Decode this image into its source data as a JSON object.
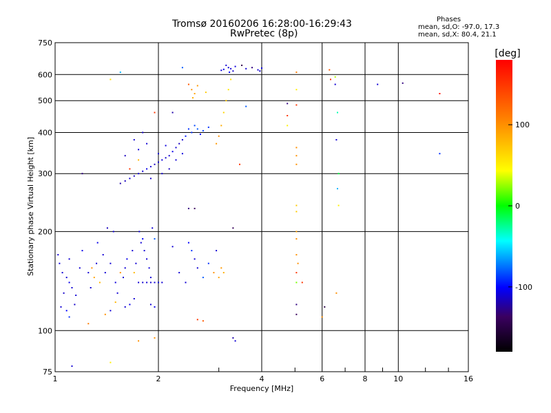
{
  "header": {
    "title": "Tromsø 20160206 16:28:00-16:29:43",
    "subtitle": "RwPretec (8p)",
    "stats_title": "Phases",
    "stats_o": "mean, sd,O: -97.0, 17.3",
    "stats_x": "mean, sd,X:  80.4, 21.1"
  },
  "chart_data": {
    "type": "scatter",
    "title": "Tromsø 20160206 16:28:00-16:29:43",
    "subtitle": "RwPretec (8p)",
    "xlabel": "Frequency [MHz]",
    "ylabel": "Stationary phase Virtual Height [km]",
    "x_scale": "log",
    "y_scale": "log",
    "xlim": [
      1,
      16
    ],
    "ylim": [
      75,
      750
    ],
    "x_ticks": [
      1,
      2,
      4,
      6,
      8,
      10,
      16
    ],
    "x_tick_labels": [
      "1",
      "2",
      "4",
      "6",
      "8",
      "10",
      "16"
    ],
    "y_ticks": [
      75,
      100,
      200,
      300,
      400,
      500,
      600,
      750
    ],
    "y_tick_labels": [
      "75",
      "100",
      "200",
      "300",
      "400",
      "500",
      "600",
      "750"
    ],
    "grid": true,
    "colorbar": {
      "label": "[deg]",
      "range": [
        -180,
        180
      ],
      "ticks": [
        100,
        0,
        -100
      ],
      "tick_labels": [
        "100",
        "0",
        "-100"
      ]
    },
    "points": [
      {
        "x": 3.15,
        "y": 640,
        "phase": -110
      },
      {
        "x": 3.2,
        "y": 630,
        "phase": -110
      },
      {
        "x": 3.25,
        "y": 625,
        "phase": -110
      },
      {
        "x": 3.1,
        "y": 622,
        "phase": -105
      },
      {
        "x": 3.3,
        "y": 615,
        "phase": -112
      },
      {
        "x": 3.05,
        "y": 618,
        "phase": -108
      },
      {
        "x": 3.22,
        "y": 610,
        "phase": -100
      },
      {
        "x": 3.35,
        "y": 635,
        "phase": -108
      },
      {
        "x": 3.6,
        "y": 625,
        "phase": -110
      },
      {
        "x": 3.9,
        "y": 620,
        "phase": -110
      },
      {
        "x": 4.0,
        "y": 628,
        "phase": -105
      },
      {
        "x": 3.95,
        "y": 615,
        "phase": -112
      },
      {
        "x": 2.35,
        "y": 630,
        "phase": -80
      },
      {
        "x": 3.5,
        "y": 640,
        "phase": -150
      },
      {
        "x": 3.75,
        "y": 630,
        "phase": -130
      },
      {
        "x": 1.2,
        "y": 300,
        "phase": -130
      },
      {
        "x": 1.12,
        "y": 78,
        "phase": -110
      },
      {
        "x": 1.55,
        "y": 610,
        "phase": -60
      },
      {
        "x": 2.45,
        "y": 560,
        "phase": 130
      },
      {
        "x": 2.5,
        "y": 540,
        "phase": 100
      },
      {
        "x": 2.55,
        "y": 525,
        "phase": 90
      },
      {
        "x": 2.6,
        "y": 555,
        "phase": 95
      },
      {
        "x": 2.52,
        "y": 510,
        "phase": 85
      },
      {
        "x": 2.75,
        "y": 530,
        "phase": 70
      },
      {
        "x": 3.25,
        "y": 580,
        "phase": 60
      },
      {
        "x": 3.2,
        "y": 540,
        "phase": 55
      },
      {
        "x": 3.15,
        "y": 500,
        "phase": 70
      },
      {
        "x": 3.1,
        "y": 460,
        "phase": 65
      },
      {
        "x": 3.05,
        "y": 420,
        "phase": 85
      },
      {
        "x": 3.0,
        "y": 390,
        "phase": 100
      },
      {
        "x": 2.95,
        "y": 370,
        "phase": 95
      },
      {
        "x": 3.6,
        "y": 480,
        "phase": -80
      },
      {
        "x": 3.45,
        "y": 320,
        "phase": 150
      },
      {
        "x": 2.2,
        "y": 460,
        "phase": -120
      },
      {
        "x": 1.95,
        "y": 460,
        "phase": 150
      },
      {
        "x": 1.55,
        "y": 280,
        "phase": -120
      },
      {
        "x": 1.6,
        "y": 285,
        "phase": -115
      },
      {
        "x": 1.65,
        "y": 290,
        "phase": -110
      },
      {
        "x": 1.7,
        "y": 295,
        "phase": -112
      },
      {
        "x": 1.75,
        "y": 300,
        "phase": -108
      },
      {
        "x": 1.8,
        "y": 305,
        "phase": -110
      },
      {
        "x": 1.85,
        "y": 310,
        "phase": -105
      },
      {
        "x": 1.9,
        "y": 315,
        "phase": -110
      },
      {
        "x": 1.95,
        "y": 320,
        "phase": -115
      },
      {
        "x": 2.0,
        "y": 325,
        "phase": -110
      },
      {
        "x": 2.05,
        "y": 330,
        "phase": -108
      },
      {
        "x": 2.1,
        "y": 335,
        "phase": -112
      },
      {
        "x": 2.15,
        "y": 340,
        "phase": -110
      },
      {
        "x": 2.2,
        "y": 350,
        "phase": -105
      },
      {
        "x": 2.25,
        "y": 360,
        "phase": -110
      },
      {
        "x": 2.3,
        "y": 370,
        "phase": -115
      },
      {
        "x": 2.35,
        "y": 380,
        "phase": -110
      },
      {
        "x": 2.4,
        "y": 390,
        "phase": -95
      },
      {
        "x": 2.5,
        "y": 400,
        "phase": -90
      },
      {
        "x": 2.6,
        "y": 410,
        "phase": -80
      },
      {
        "x": 2.7,
        "y": 405,
        "phase": -85
      },
      {
        "x": 2.8,
        "y": 415,
        "phase": -90
      },
      {
        "x": 2.65,
        "y": 395,
        "phase": -100
      },
      {
        "x": 2.55,
        "y": 420,
        "phase": -85
      },
      {
        "x": 2.45,
        "y": 410,
        "phase": -90
      },
      {
        "x": 1.7,
        "y": 380,
        "phase": -110
      },
      {
        "x": 1.8,
        "y": 400,
        "phase": -112
      },
      {
        "x": 1.85,
        "y": 370,
        "phase": -110
      },
      {
        "x": 1.6,
        "y": 340,
        "phase": -115
      },
      {
        "x": 1.75,
        "y": 355,
        "phase": -110
      },
      {
        "x": 2.0,
        "y": 345,
        "phase": -110
      },
      {
        "x": 2.1,
        "y": 365,
        "phase": -108
      },
      {
        "x": 1.9,
        "y": 290,
        "phase": -112
      },
      {
        "x": 2.05,
        "y": 300,
        "phase": -110
      },
      {
        "x": 2.15,
        "y": 310,
        "phase": -115
      },
      {
        "x": 2.25,
        "y": 330,
        "phase": -110
      },
      {
        "x": 2.35,
        "y": 345,
        "phase": -108
      },
      {
        "x": 1.65,
        "y": 310,
        "phase": 150
      },
      {
        "x": 1.75,
        "y": 330,
        "phase": 80
      },
      {
        "x": 2.55,
        "y": 235,
        "phase": -140
      },
      {
        "x": 2.45,
        "y": 235,
        "phase": -130
      },
      {
        "x": 3.3,
        "y": 205,
        "phase": -140
      },
      {
        "x": 1.05,
        "y": 150,
        "phase": -110
      },
      {
        "x": 1.08,
        "y": 145,
        "phase": -110
      },
      {
        "x": 1.1,
        "y": 140,
        "phase": -105
      },
      {
        "x": 1.12,
        "y": 135,
        "phase": -110
      },
      {
        "x": 1.06,
        "y": 130,
        "phase": -112
      },
      {
        "x": 1.15,
        "y": 128,
        "phase": -110
      },
      {
        "x": 1.03,
        "y": 160,
        "phase": -108
      },
      {
        "x": 1.18,
        "y": 155,
        "phase": -110
      },
      {
        "x": 1.02,
        "y": 170,
        "phase": -110
      },
      {
        "x": 1.2,
        "y": 175,
        "phase": -105
      },
      {
        "x": 1.1,
        "y": 165,
        "phase": -110
      },
      {
        "x": 1.14,
        "y": 120,
        "phase": -112
      },
      {
        "x": 1.04,
        "y": 118,
        "phase": -110
      },
      {
        "x": 1.08,
        "y": 115,
        "phase": -100
      },
      {
        "x": 1.1,
        "y": 110,
        "phase": -90
      },
      {
        "x": 1.25,
        "y": 150,
        "phase": -110
      },
      {
        "x": 1.3,
        "y": 145,
        "phase": 90
      },
      {
        "x": 1.28,
        "y": 155,
        "phase": 100
      },
      {
        "x": 1.32,
        "y": 160,
        "phase": -110
      },
      {
        "x": 1.35,
        "y": 140,
        "phase": 80
      },
      {
        "x": 1.38,
        "y": 170,
        "phase": -110
      },
      {
        "x": 1.27,
        "y": 135,
        "phase": -110
      },
      {
        "x": 1.33,
        "y": 185,
        "phase": -105
      },
      {
        "x": 1.4,
        "y": 150,
        "phase": -110
      },
      {
        "x": 1.45,
        "y": 160,
        "phase": -110
      },
      {
        "x": 1.5,
        "y": 140,
        "phase": -108
      },
      {
        "x": 1.48,
        "y": 200,
        "phase": -110
      },
      {
        "x": 1.42,
        "y": 205,
        "phase": -115
      },
      {
        "x": 1.52,
        "y": 130,
        "phase": -110
      },
      {
        "x": 1.55,
        "y": 150,
        "phase": 100
      },
      {
        "x": 1.6,
        "y": 155,
        "phase": -110
      },
      {
        "x": 1.62,
        "y": 165,
        "phase": -105
      },
      {
        "x": 1.58,
        "y": 145,
        "phase": -110
      },
      {
        "x": 1.68,
        "y": 175,
        "phase": -110
      },
      {
        "x": 1.7,
        "y": 150,
        "phase": 80
      },
      {
        "x": 1.72,
        "y": 160,
        "phase": -110
      },
      {
        "x": 1.78,
        "y": 185,
        "phase": -110
      },
      {
        "x": 1.8,
        "y": 190,
        "phase": -100
      },
      {
        "x": 1.82,
        "y": 175,
        "phase": -110
      },
      {
        "x": 1.85,
        "y": 165,
        "phase": -110
      },
      {
        "x": 1.88,
        "y": 155,
        "phase": -108
      },
      {
        "x": 1.9,
        "y": 145,
        "phase": -110
      },
      {
        "x": 1.76,
        "y": 200,
        "phase": -110
      },
      {
        "x": 1.92,
        "y": 205,
        "phase": -110
      },
      {
        "x": 1.95,
        "y": 190,
        "phase": -80
      },
      {
        "x": 1.8,
        "y": 140,
        "phase": -110
      },
      {
        "x": 1.85,
        "y": 140,
        "phase": -110
      },
      {
        "x": 1.9,
        "y": 140,
        "phase": -112
      },
      {
        "x": 1.95,
        "y": 140,
        "phase": -110
      },
      {
        "x": 2.0,
        "y": 140,
        "phase": -108
      },
      {
        "x": 2.05,
        "y": 140,
        "phase": -110
      },
      {
        "x": 1.75,
        "y": 140,
        "phase": -110
      },
      {
        "x": 1.7,
        "y": 125,
        "phase": -110
      },
      {
        "x": 1.65,
        "y": 120,
        "phase": -105
      },
      {
        "x": 1.6,
        "y": 118,
        "phase": -110
      },
      {
        "x": 1.5,
        "y": 122,
        "phase": 80
      },
      {
        "x": 1.45,
        "y": 115,
        "phase": -110
      },
      {
        "x": 1.4,
        "y": 112,
        "phase": 100
      },
      {
        "x": 1.9,
        "y": 120,
        "phase": -110
      },
      {
        "x": 1.95,
        "y": 118,
        "phase": -105
      },
      {
        "x": 2.45,
        "y": 185,
        "phase": -100
      },
      {
        "x": 2.5,
        "y": 175,
        "phase": -90
      },
      {
        "x": 2.55,
        "y": 165,
        "phase": -110
      },
      {
        "x": 2.6,
        "y": 155,
        "phase": -110
      },
      {
        "x": 2.3,
        "y": 150,
        "phase": -110
      },
      {
        "x": 2.7,
        "y": 145,
        "phase": -80
      },
      {
        "x": 2.8,
        "y": 160,
        "phase": -90
      },
      {
        "x": 2.9,
        "y": 150,
        "phase": 100
      },
      {
        "x": 3.0,
        "y": 145,
        "phase": 90
      },
      {
        "x": 3.05,
        "y": 155,
        "phase": 95
      },
      {
        "x": 3.1,
        "y": 150,
        "phase": 85
      },
      {
        "x": 2.95,
        "y": 175,
        "phase": -110
      },
      {
        "x": 2.2,
        "y": 180,
        "phase": -110
      },
      {
        "x": 2.4,
        "y": 140,
        "phase": -110
      },
      {
        "x": 2.6,
        "y": 108,
        "phase": 150
      },
      {
        "x": 2.7,
        "y": 107,
        "phase": 130
      },
      {
        "x": 3.3,
        "y": 95,
        "phase": -120
      },
      {
        "x": 3.35,
        "y": 93,
        "phase": -110
      },
      {
        "x": 1.75,
        "y": 93,
        "phase": 100
      },
      {
        "x": 1.95,
        "y": 95,
        "phase": 100
      },
      {
        "x": 1.25,
        "y": 105,
        "phase": 110
      },
      {
        "x": 1.45,
        "y": 80,
        "phase": 50
      },
      {
        "x": 1.45,
        "y": 580,
        "phase": 60
      },
      {
        "x": 5.05,
        "y": 610,
        "phase": 110
      },
      {
        "x": 5.05,
        "y": 540,
        "phase": 50
      },
      {
        "x": 5.05,
        "y": 485,
        "phase": 150
      },
      {
        "x": 4.75,
        "y": 490,
        "phase": -130
      },
      {
        "x": 4.75,
        "y": 450,
        "phase": 150
      },
      {
        "x": 4.75,
        "y": 420,
        "phase": 50
      },
      {
        "x": 5.05,
        "y": 360,
        "phase": 100
      },
      {
        "x": 5.05,
        "y": 340,
        "phase": 100
      },
      {
        "x": 5.05,
        "y": 320,
        "phase": 100
      },
      {
        "x": 5.05,
        "y": 240,
        "phase": 70
      },
      {
        "x": 5.05,
        "y": 230,
        "phase": 70
      },
      {
        "x": 5.05,
        "y": 200,
        "phase": 90
      },
      {
        "x": 5.05,
        "y": 190,
        "phase": 100
      },
      {
        "x": 5.05,
        "y": 150,
        "phase": 150
      },
      {
        "x": 5.05,
        "y": 140,
        "phase": 20
      },
      {
        "x": 5.1,
        "y": 160,
        "phase": 100
      },
      {
        "x": 5.05,
        "y": 170,
        "phase": 100
      },
      {
        "x": 5.05,
        "y": 120,
        "phase": -130
      },
      {
        "x": 5.05,
        "y": 112,
        "phase": -140
      },
      {
        "x": 5.25,
        "y": 140,
        "phase": 150
      },
      {
        "x": 6.0,
        "y": 110,
        "phase": 100
      },
      {
        "x": 6.1,
        "y": 118,
        "phase": -150
      },
      {
        "x": 6.35,
        "y": 580,
        "phase": 150
      },
      {
        "x": 6.3,
        "y": 620,
        "phase": 130
      },
      {
        "x": 6.55,
        "y": 590,
        "phase": 30
      },
      {
        "x": 6.55,
        "y": 560,
        "phase": -110
      },
      {
        "x": 6.65,
        "y": 460,
        "phase": -30
      },
      {
        "x": 6.6,
        "y": 380,
        "phase": -110
      },
      {
        "x": 6.7,
        "y": 300,
        "phase": -10
      },
      {
        "x": 6.65,
        "y": 270,
        "phase": -60
      },
      {
        "x": 6.7,
        "y": 240,
        "phase": 50
      },
      {
        "x": 6.6,
        "y": 130,
        "phase": 100
      },
      {
        "x": 8.7,
        "y": 560,
        "phase": -110
      },
      {
        "x": 10.3,
        "y": 565,
        "phase": -130
      },
      {
        "x": 13.2,
        "y": 525,
        "phase": 170
      },
      {
        "x": 13.2,
        "y": 345,
        "phase": -90
      }
    ]
  }
}
